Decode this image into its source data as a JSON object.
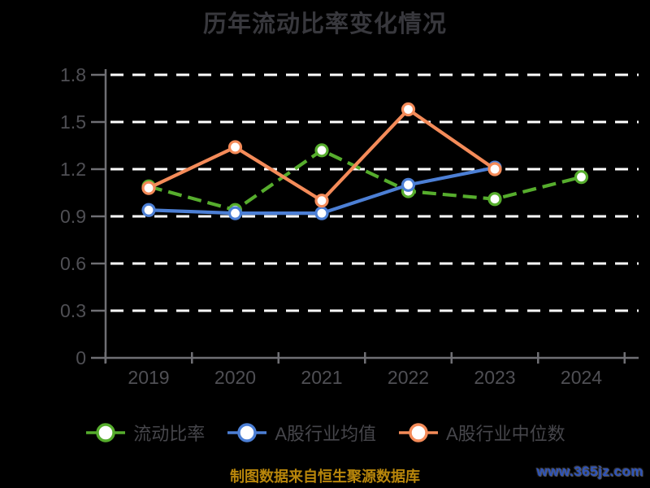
{
  "title": "历年流动比率变化情况",
  "footer": {
    "note": "制图数据来自恒生聚源数据库",
    "watermark": "www.365jz.com"
  },
  "colors": {
    "background": "#000000",
    "title_text": "#38383d",
    "axis_line": "#6f6f74",
    "tick_label": "#4f4f54",
    "gridline": "#ffffff",
    "legend_text": "#46464b",
    "footer_text": "#b8860b",
    "watermark_text": "#2d54bc",
    "series_current_ratio": "#56ad2d",
    "series_industry_mean": "#4c7fd5",
    "series_industry_median": "#f48b59"
  },
  "chart_data": {
    "type": "line",
    "title": "历年流动比率变化情况",
    "categories": [
      "2019",
      "2020",
      "2021",
      "2022",
      "2023",
      "2024"
    ],
    "series": [
      {
        "name": "流动比率",
        "color": "#56ad2d",
        "line_style": "dashed",
        "values": [
          1.09,
          0.94,
          1.32,
          1.06,
          1.01,
          1.15
        ]
      },
      {
        "name": "A股行业均值",
        "color": "#4c7fd5",
        "line_style": "solid",
        "values": [
          0.94,
          0.92,
          0.92,
          1.1,
          1.21,
          null
        ]
      },
      {
        "name": "A股行业中位数",
        "color": "#f48b59",
        "line_style": "solid",
        "values": [
          1.08,
          1.34,
          1.0,
          1.58,
          1.2,
          null
        ]
      }
    ],
    "xlabel": "",
    "ylabel": "",
    "ylim": [
      0,
      1.8
    ],
    "ytick_labels": [
      "0",
      "0.3",
      "0.6",
      "0.9",
      "1.2",
      "1.5",
      "1.8"
    ],
    "grid": "horizontal-white-dashed",
    "legend_position": "bottom",
    "marker": "circle-white-fill-colored-ring"
  }
}
